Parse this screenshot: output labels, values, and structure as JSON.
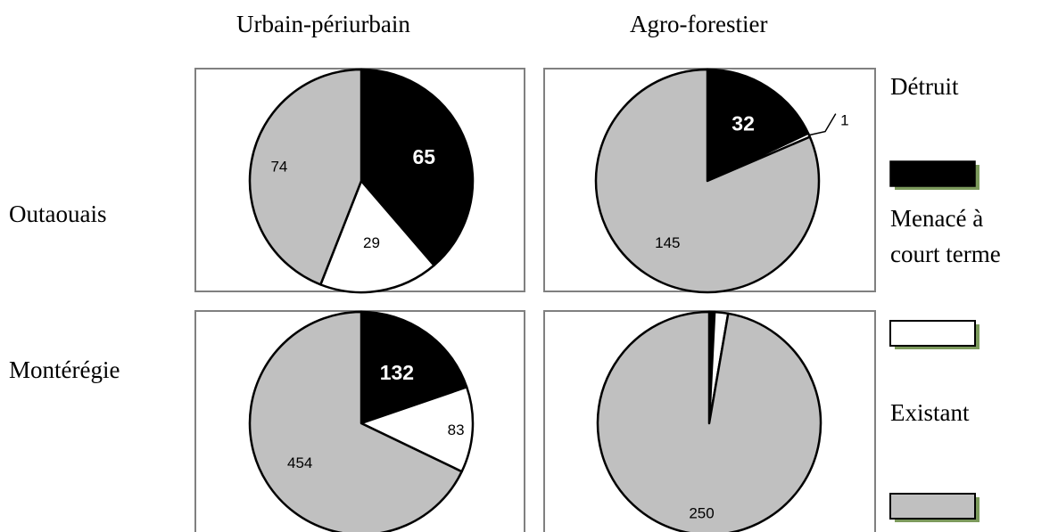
{
  "columns": [
    "Urbain-périurbain",
    "Agro-forestier"
  ],
  "rows": [
    "Outaouais",
    "Montérégie"
  ],
  "legend": [
    {
      "label": "Détruit",
      "color": "#000000"
    },
    {
      "label": "Menacé à court terme",
      "color": "#ffffff"
    },
    {
      "label": "Existant",
      "color": "#c0c0c0"
    }
  ],
  "chart_data": [
    {
      "type": "pie",
      "row": "Outaouais",
      "column": "Urbain-périurbain",
      "categories": [
        "Détruit",
        "Menacé à court terme",
        "Existant"
      ],
      "values": [
        65,
        29,
        74
      ]
    },
    {
      "type": "pie",
      "row": "Outaouais",
      "column": "Agro-forestier",
      "categories": [
        "Détruit",
        "Menacé à court terme",
        "Existant"
      ],
      "values": [
        32,
        1,
        145
      ]
    },
    {
      "type": "pie",
      "row": "Montérégie",
      "column": "Urbain-périurbain",
      "categories": [
        "Détruit",
        "Menacé à court terme",
        "Existant"
      ],
      "values": [
        132,
        83,
        454
      ]
    },
    {
      "type": "pie",
      "row": "Montérégie",
      "column": "Agro-forestier",
      "categories": [
        "Détruit",
        "Menacé à court terme",
        "Existant"
      ],
      "values": [
        2,
        5,
        250
      ]
    }
  ]
}
